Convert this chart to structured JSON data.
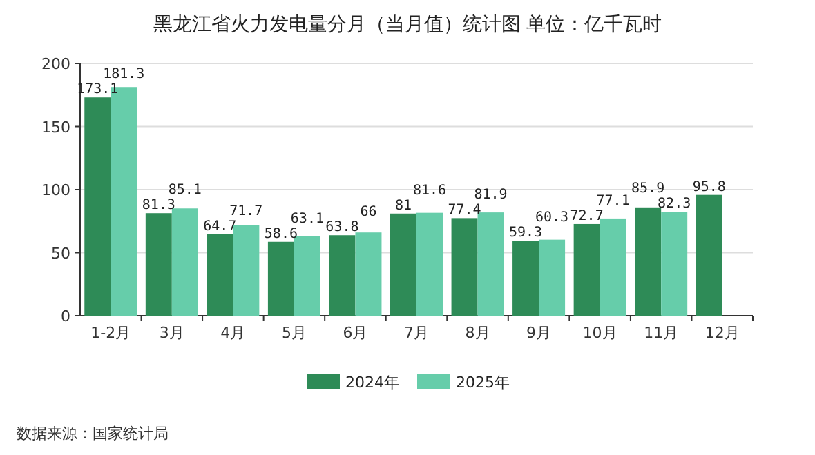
{
  "chart_data": {
    "type": "bar",
    "title": "黑龙江省火力发电量分月（当月值）统计图 单位：亿千瓦时",
    "categories": [
      "1-2月",
      "3月",
      "4月",
      "5月",
      "6月",
      "7月",
      "8月",
      "9月",
      "10月",
      "11月",
      "12月"
    ],
    "series": [
      {
        "name": "2024年",
        "color": "#2e8b57",
        "values": [
          173.1,
          81.3,
          64.7,
          58.6,
          63.8,
          81,
          77.4,
          59.3,
          72.7,
          85.9,
          95.8
        ]
      },
      {
        "name": "2025年",
        "color": "#66cdaa",
        "values": [
          181.3,
          85.1,
          71.7,
          63.1,
          66,
          81.6,
          81.9,
          60.3,
          77.1,
          82.3,
          null
        ]
      }
    ],
    "ylim": [
      0,
      200
    ],
    "yticks": [
      0,
      50,
      100,
      150,
      200
    ],
    "grid": "y",
    "legend": "bottom",
    "data_labels": true,
    "annotations": [
      "数据来源：国家统计局"
    ]
  }
}
